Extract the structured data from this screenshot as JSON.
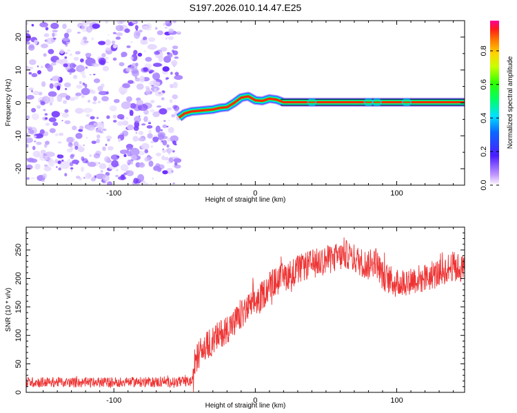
{
  "figure_title": "S197.2026.010.14.47.E25",
  "chart_data": [
    {
      "type": "heatmap",
      "title": "S197.2026.010.14.47.E25",
      "xlabel": "Height of straight line (km)",
      "ylabel": "Frequency (Hz)",
      "xlim": [
        -162,
        148
      ],
      "ylim": [
        -25,
        25
      ],
      "xticks": [
        -100,
        0,
        100
      ],
      "yticks": [
        20,
        10,
        0,
        -10,
        -20
      ],
      "noise_region_x": [
        -162,
        -54
      ],
      "ridge": {
        "x": [
          -54,
          -50,
          -45,
          -40,
          -35,
          -30,
          -25,
          -20,
          -15,
          -10,
          -5,
          0,
          5,
          10,
          15,
          20,
          40,
          80,
          100,
          148
        ],
        "freq": [
          -4.5,
          -3.2,
          -2.6,
          -2.4,
          -2.2,
          -2.0,
          -1.5,
          -1.3,
          0.0,
          1.6,
          2.0,
          0.8,
          0.6,
          1.3,
          1.0,
          0.2,
          0.2,
          0.2,
          0.2,
          0.2
        ]
      },
      "colorbar": {
        "label": "Normalized spectral amplitude",
        "ticks": [
          "0.0",
          "0.2",
          "0.4",
          "0.6",
          "0.8"
        ],
        "range": [
          0,
          1
        ]
      }
    },
    {
      "type": "line",
      "xlabel": "Height of straight line (km)",
      "ylabel": "SNR (10 * v/v)",
      "xlim": [
        -162,
        148
      ],
      "ylim": [
        0,
        290
      ],
      "xticks": [
        -100,
        0,
        100
      ],
      "yticks": [
        0,
        50,
        100,
        150,
        200,
        250
      ],
      "series": [
        {
          "name": "SNR",
          "color": "#ee3333",
          "x": [
            -162,
            -140,
            -120,
            -100,
            -80,
            -60,
            -44,
            -43,
            -40,
            -35,
            -30,
            -25,
            -20,
            -15,
            -10,
            -5,
            0,
            5,
            10,
            15,
            20,
            30,
            40,
            50,
            60,
            65,
            70,
            80,
            85,
            90,
            100,
            110,
            120,
            130,
            140,
            148
          ],
          "values": [
            18,
            18,
            17,
            18,
            18,
            18,
            19,
            50,
            68,
            80,
            90,
            102,
            112,
            122,
            135,
            148,
            158,
            170,
            188,
            195,
            202,
            215,
            225,
            232,
            238,
            242,
            235,
            222,
            232,
            205,
            190,
            198,
            200,
            210,
            222,
            215
          ]
        }
      ]
    }
  ]
}
